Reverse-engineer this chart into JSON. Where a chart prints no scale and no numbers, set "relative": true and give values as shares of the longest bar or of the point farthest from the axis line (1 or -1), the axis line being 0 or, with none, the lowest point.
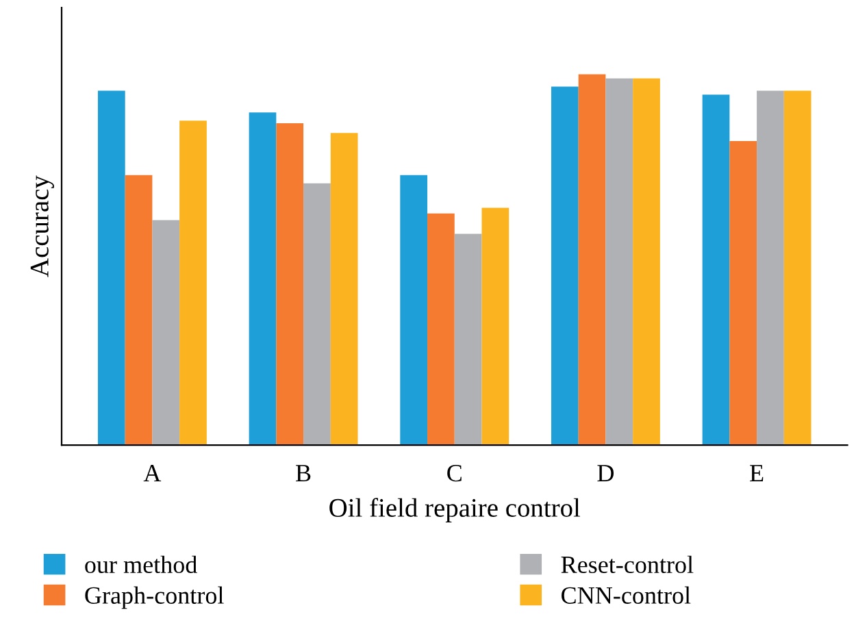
{
  "chart_data": {
    "type": "bar",
    "relative": true,
    "xlabel": "Oil field repaire control",
    "ylabel": "Accuracy",
    "categories": [
      "A",
      "B",
      "C",
      "D",
      "E"
    ],
    "legend": "bottom",
    "grid": false,
    "series": [
      {
        "name": "our method",
        "color": "#1f9fd8",
        "values": [
          0.956,
          0.897,
          0.728,
          0.967,
          0.945
        ]
      },
      {
        "name": "Graph-control",
        "color": "#f47b30",
        "values": [
          0.728,
          0.868,
          0.625,
          1,
          0.82
        ]
      },
      {
        "name": "Reset-control",
        "color": "#b0b1b5",
        "values": [
          0.607,
          0.706,
          0.57,
          0.989,
          0.956
        ]
      },
      {
        "name": "CNN-control",
        "color": "#fbb41f",
        "values": [
          0.875,
          0.842,
          0.64,
          0.989,
          0.956
        ]
      }
    ]
  }
}
